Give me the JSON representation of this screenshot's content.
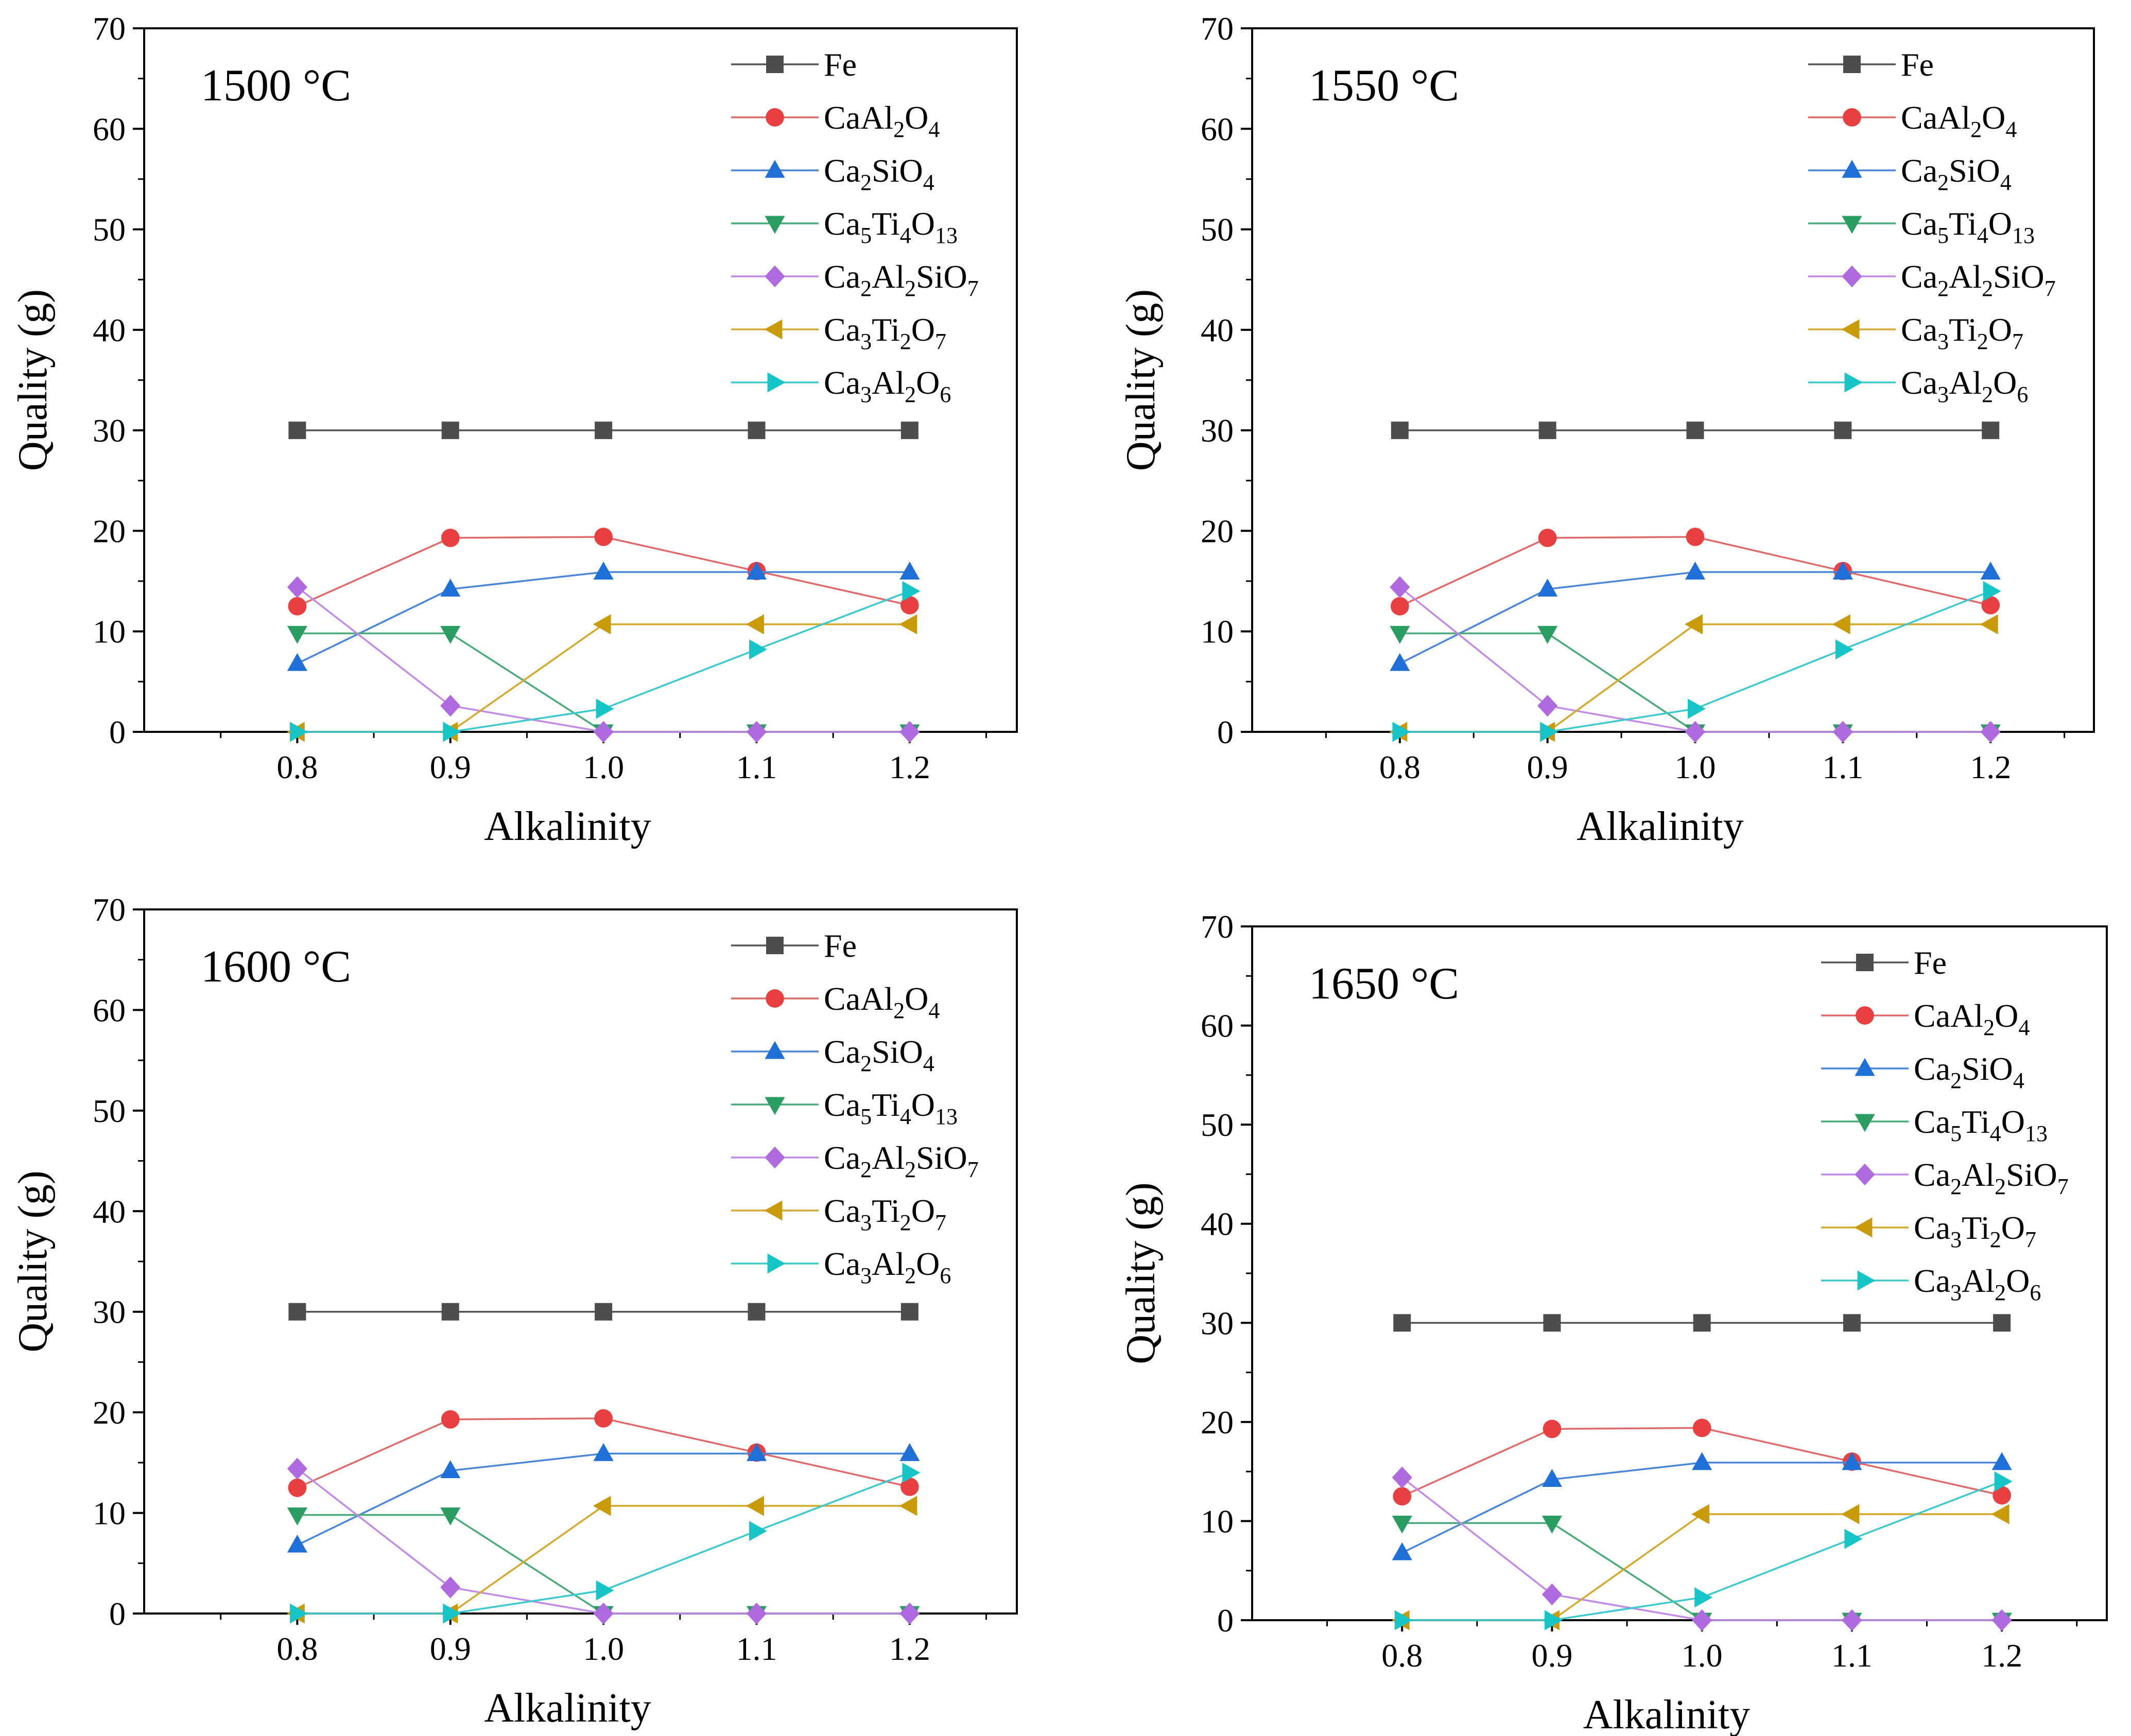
{
  "chart_data": [
    {
      "type": "line",
      "title": "1500 °C",
      "xlabel": "Alkalinity",
      "ylabel": "Quality (g)",
      "x": [
        0.8,
        0.9,
        1.0,
        1.1,
        1.2
      ],
      "x_tick_labels": [
        "0.8",
        "0.9",
        "1.0",
        "1.1",
        "1.2"
      ],
      "xlim": [
        0.7,
        1.27
      ],
      "ylim": [
        0,
        70
      ],
      "y_ticks": [
        0,
        10,
        20,
        30,
        40,
        50,
        60,
        70
      ],
      "y_tick_labels": [
        "0",
        "10",
        "20",
        "30",
        "40",
        "50",
        "60",
        "70"
      ],
      "legend_position": "top-right",
      "series": [
        {
          "name": "Fe",
          "values": [
            30,
            30,
            30,
            30,
            30
          ]
        },
        {
          "name": "CaAl2O4",
          "values": [
            12.5,
            19.3,
            19.4,
            16.0,
            12.6
          ]
        },
        {
          "name": "Ca2SiO4",
          "values": [
            6.8,
            14.2,
            15.9,
            15.9,
            15.9
          ]
        },
        {
          "name": "Ca5Ti4O13",
          "values": [
            9.8,
            9.8,
            0,
            0,
            0
          ]
        },
        {
          "name": "Ca2Al2SiO7",
          "values": [
            14.4,
            2.6,
            0,
            0,
            0
          ]
        },
        {
          "name": "Ca3Ti2O7",
          "values": [
            0,
            0,
            10.7,
            10.7,
            10.7
          ]
        },
        {
          "name": "Ca3Al2O6",
          "values": [
            0,
            0,
            2.3,
            8.2,
            14.0
          ]
        }
      ]
    },
    {
      "type": "line",
      "title": "1550 °C",
      "xlabel": "Alkalinity",
      "ylabel": "Quality (g)",
      "x": [
        0.8,
        0.9,
        1.0,
        1.1,
        1.2
      ],
      "x_tick_labels": [
        "0.8",
        "0.9",
        "1.0",
        "1.1",
        "1.2"
      ],
      "xlim": [
        0.7,
        1.27
      ],
      "ylim": [
        0,
        70
      ],
      "y_ticks": [
        0,
        10,
        20,
        30,
        40,
        50,
        60,
        70
      ],
      "y_tick_labels": [
        "0",
        "10",
        "20",
        "30",
        "40",
        "50",
        "60",
        "70"
      ],
      "legend_position": "top-right",
      "series": [
        {
          "name": "Fe",
          "values": [
            30,
            30,
            30,
            30,
            30
          ]
        },
        {
          "name": "CaAl2O4",
          "values": [
            12.5,
            19.3,
            19.4,
            16.0,
            12.6
          ]
        },
        {
          "name": "Ca2SiO4",
          "values": [
            6.8,
            14.2,
            15.9,
            15.9,
            15.9
          ]
        },
        {
          "name": "Ca5Ti4O13",
          "values": [
            9.8,
            9.8,
            0,
            0,
            0
          ]
        },
        {
          "name": "Ca2Al2SiO7",
          "values": [
            14.4,
            2.6,
            0,
            0,
            0
          ]
        },
        {
          "name": "Ca3Ti2O7",
          "values": [
            0,
            0,
            10.7,
            10.7,
            10.7
          ]
        },
        {
          "name": "Ca3Al2O6",
          "values": [
            0,
            0,
            2.3,
            8.2,
            14.0
          ]
        }
      ]
    },
    {
      "type": "line",
      "title": "1600 °C",
      "xlabel": "Alkalinity",
      "ylabel": "Quality (g)",
      "x": [
        0.8,
        0.9,
        1.0,
        1.1,
        1.2
      ],
      "x_tick_labels": [
        "0.8",
        "0.9",
        "1.0",
        "1.1",
        "1.2"
      ],
      "xlim": [
        0.7,
        1.27
      ],
      "ylim": [
        0,
        70
      ],
      "y_ticks": [
        0,
        10,
        20,
        30,
        40,
        50,
        60,
        70
      ],
      "y_tick_labels": [
        "0",
        "10",
        "20",
        "30",
        "40",
        "50",
        "60",
        "70"
      ],
      "legend_position": "top-right",
      "series": [
        {
          "name": "Fe",
          "values": [
            30,
            30,
            30,
            30,
            30
          ]
        },
        {
          "name": "CaAl2O4",
          "values": [
            12.5,
            19.3,
            19.4,
            16.0,
            12.6
          ]
        },
        {
          "name": "Ca2SiO4",
          "values": [
            6.8,
            14.2,
            15.9,
            15.9,
            15.9
          ]
        },
        {
          "name": "Ca5Ti4O13",
          "values": [
            9.8,
            9.8,
            0,
            0,
            0
          ]
        },
        {
          "name": "Ca2Al2SiO7",
          "values": [
            14.4,
            2.6,
            0,
            0,
            0
          ]
        },
        {
          "name": "Ca3Ti2O7",
          "values": [
            0,
            0,
            10.7,
            10.7,
            10.7
          ]
        },
        {
          "name": "Ca3Al2O6",
          "values": [
            0,
            0,
            2.3,
            8.2,
            14.0
          ]
        }
      ]
    },
    {
      "type": "line",
      "title": "1650 °C",
      "xlabel": "Alkalinity",
      "ylabel": "Quality (g)",
      "x": [
        0.8,
        0.9,
        1.0,
        1.1,
        1.2
      ],
      "x_tick_labels": [
        "0.8",
        "0.9",
        "1.0",
        "1.1",
        "1.2"
      ],
      "xlim": [
        0.7,
        1.27
      ],
      "ylim": [
        0,
        70
      ],
      "y_ticks": [
        0,
        10,
        20,
        30,
        40,
        50,
        60,
        70
      ],
      "y_tick_labels": [
        "0",
        "10",
        "20",
        "30",
        "40",
        "50",
        "60",
        "70"
      ],
      "legend_position": "top-right",
      "series": [
        {
          "name": "Fe",
          "values": [
            30,
            30,
            30,
            30,
            30
          ]
        },
        {
          "name": "CaAl2O4",
          "values": [
            12.5,
            19.3,
            19.4,
            16.0,
            12.6
          ]
        },
        {
          "name": "Ca2SiO4",
          "values": [
            6.8,
            14.2,
            15.9,
            15.9,
            15.9
          ]
        },
        {
          "name": "Ca5Ti4O13",
          "values": [
            9.8,
            9.8,
            0,
            0,
            0
          ]
        },
        {
          "name": "Ca2Al2SiO7",
          "values": [
            14.4,
            2.6,
            0,
            0,
            0
          ]
        },
        {
          "name": "Ca3Ti2O7",
          "values": [
            0,
            0,
            10.7,
            10.7,
            10.7
          ]
        },
        {
          "name": "Ca3Al2O6",
          "values": [
            0,
            0,
            2.3,
            8.2,
            14.0
          ]
        }
      ]
    }
  ],
  "series_style": [
    {
      "name": "Fe",
      "color": "#4d4d4d",
      "line_color": "#555555",
      "marker": "square"
    },
    {
      "name": "CaAl2O4",
      "color": "#e84040",
      "line_color": "#e06a6a",
      "marker": "circle"
    },
    {
      "name": "Ca2SiO4",
      "color": "#1f6fd8",
      "line_color": "#4a86d6",
      "marker": "triangle-up"
    },
    {
      "name": "Ca5Ti4O13",
      "color": "#2a9e62",
      "line_color": "#4aab7a",
      "marker": "triangle-down"
    },
    {
      "name": "Ca2Al2SiO7",
      "color": "#b06ae0",
      "line_color": "#c08ae6",
      "marker": "diamond"
    },
    {
      "name": "Ca3Ti2O7",
      "color": "#c99a0a",
      "line_color": "#d4a82a",
      "marker": "triangle-left"
    },
    {
      "name": "Ca3Al2O6",
      "color": "#17c4c8",
      "line_color": "#3cc8cc",
      "marker": "triangle-right"
    }
  ]
}
